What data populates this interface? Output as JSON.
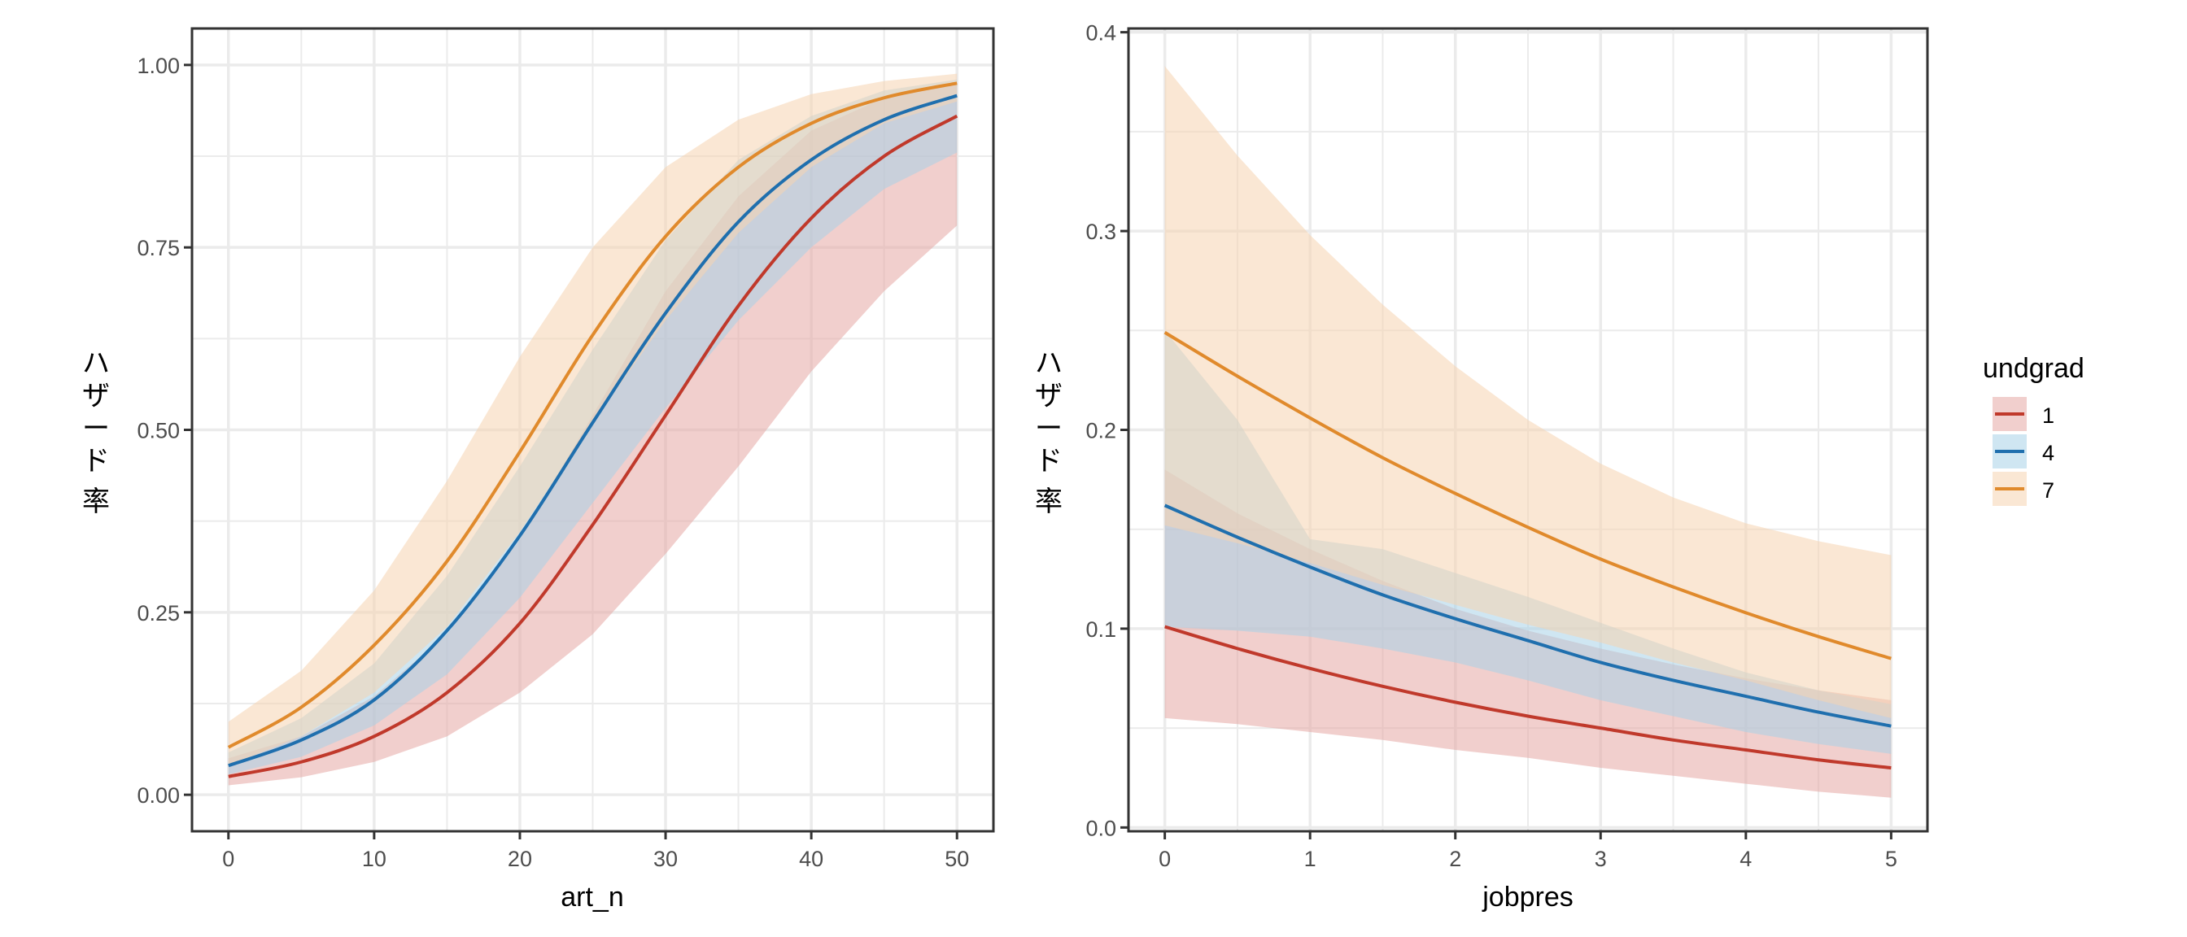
{
  "chart_data": [
    {
      "type": "line",
      "panel": "left",
      "title": "",
      "xlabel": "art_n",
      "ylabel": "ハザード率",
      "xlim": [
        -2.5,
        52.5
      ],
      "ylim": [
        -0.05,
        1.05
      ],
      "xticks": [
        0,
        10,
        20,
        30,
        40,
        50
      ],
      "xtick_labels": [
        "0",
        "10",
        "20",
        "30",
        "40",
        "50"
      ],
      "yticks": [
        0,
        0.25,
        0.5,
        0.75,
        1.0
      ],
      "ytick_labels": [
        "0.00",
        "0.25",
        "0.50",
        "0.75",
        "1.00"
      ],
      "grid": true,
      "x": [
        0,
        5,
        10,
        15,
        20,
        25,
        30,
        35,
        40,
        45,
        50
      ],
      "series": [
        {
          "name": "1",
          "values": [
            0.025,
            0.045,
            0.08,
            0.14,
            0.235,
            0.37,
            0.52,
            0.67,
            0.79,
            0.875,
            0.93
          ],
          "lower": [
            0.013,
            0.024,
            0.045,
            0.08,
            0.14,
            0.22,
            0.33,
            0.45,
            0.58,
            0.69,
            0.78
          ],
          "upper": [
            0.05,
            0.08,
            0.135,
            0.22,
            0.35,
            0.52,
            0.69,
            0.82,
            0.91,
            0.955,
            0.975
          ]
        },
        {
          "name": "4",
          "values": [
            0.04,
            0.075,
            0.13,
            0.225,
            0.355,
            0.51,
            0.66,
            0.785,
            0.87,
            0.925,
            0.958
          ],
          "lower": [
            0.028,
            0.052,
            0.095,
            0.165,
            0.27,
            0.4,
            0.53,
            0.65,
            0.75,
            0.83,
            0.88
          ],
          "upper": [
            0.058,
            0.105,
            0.18,
            0.3,
            0.45,
            0.61,
            0.76,
            0.87,
            0.93,
            0.965,
            0.98
          ]
        },
        {
          "name": "7",
          "values": [
            0.065,
            0.12,
            0.205,
            0.32,
            0.47,
            0.63,
            0.765,
            0.86,
            0.92,
            0.955,
            0.975
          ],
          "lower": [
            0.04,
            0.08,
            0.14,
            0.23,
            0.36,
            0.51,
            0.65,
            0.77,
            0.86,
            0.92,
            0.95
          ],
          "upper": [
            0.1,
            0.17,
            0.28,
            0.43,
            0.6,
            0.75,
            0.86,
            0.925,
            0.96,
            0.978,
            0.988
          ]
        }
      ]
    },
    {
      "type": "line",
      "panel": "right",
      "title": "",
      "xlabel": "jobpres",
      "ylabel": "ハザード率",
      "xlim": [
        -0.25,
        5.25
      ],
      "ylim": [
        -0.0019,
        0.4019
      ],
      "xticks": [
        0,
        1,
        2,
        3,
        4,
        5
      ],
      "xtick_labels": [
        "0",
        "1",
        "2",
        "3",
        "4",
        "5"
      ],
      "yticks": [
        0,
        0.1,
        0.2,
        0.3,
        0.4
      ],
      "ytick_labels": [
        "0.0",
        "0.1",
        "0.2",
        "0.3",
        "0.4"
      ],
      "grid": true,
      "x": [
        0,
        0.5,
        1,
        1.5,
        2,
        2.5,
        3,
        3.5,
        4,
        4.5,
        5
      ],
      "series": [
        {
          "name": "1",
          "values": [
            0.101,
            0.09,
            0.08,
            0.071,
            0.063,
            0.056,
            0.05,
            0.044,
            0.039,
            0.034,
            0.03
          ],
          "lower": [
            0.055,
            0.052,
            0.048,
            0.044,
            0.039,
            0.035,
            0.03,
            0.026,
            0.022,
            0.018,
            0.015
          ],
          "upper": [
            0.18,
            0.158,
            0.14,
            0.124,
            0.11,
            0.099,
            0.09,
            0.082,
            0.075,
            0.069,
            0.064
          ]
        },
        {
          "name": "4",
          "values": [
            0.162,
            0.146,
            0.131,
            0.117,
            0.105,
            0.094,
            0.083,
            0.074,
            0.066,
            0.058,
            0.051
          ],
          "lower": [
            0.101,
            0.099,
            0.096,
            0.09,
            0.083,
            0.074,
            0.064,
            0.056,
            0.048,
            0.042,
            0.037
          ],
          "upper": [
            0.25,
            0.205,
            0.145,
            0.14,
            0.128,
            0.116,
            0.103,
            0.09,
            0.078,
            0.069,
            0.062
          ]
        },
        {
          "name": "7",
          "values": [
            0.249,
            0.227,
            0.206,
            0.186,
            0.168,
            0.151,
            0.135,
            0.121,
            0.108,
            0.096,
            0.085
          ],
          "lower": [
            0.152,
            0.143,
            0.133,
            0.122,
            0.112,
            0.102,
            0.093,
            0.083,
            0.074,
            0.064,
            0.055
          ],
          "upper": [
            0.383,
            0.338,
            0.298,
            0.263,
            0.232,
            0.205,
            0.183,
            0.166,
            0.153,
            0.144,
            0.137
          ]
        }
      ]
    }
  ],
  "legend": {
    "title": "undgrad",
    "placement": "right",
    "items": [
      {
        "label": "1",
        "line_color": "#C0392B",
        "fill_color": "#E6A7A4"
      },
      {
        "label": "4",
        "line_color": "#1F6FAE",
        "fill_color": "#A8D1E7"
      },
      {
        "label": "7",
        "line_color": "#E08A2C",
        "fill_color": "#F6D3B0"
      }
    ]
  },
  "colors": {
    "series_1": "#C0392B",
    "series_4": "#1F6FAE",
    "series_7": "#E08A2C",
    "ribbon_1": "#E6A7A4",
    "ribbon_4": "#A8D1E7",
    "ribbon_7": "#F6D3B0",
    "grid": "#EBEBEB",
    "panel_border": "#333333",
    "tick_text": "#4D4D4D"
  }
}
